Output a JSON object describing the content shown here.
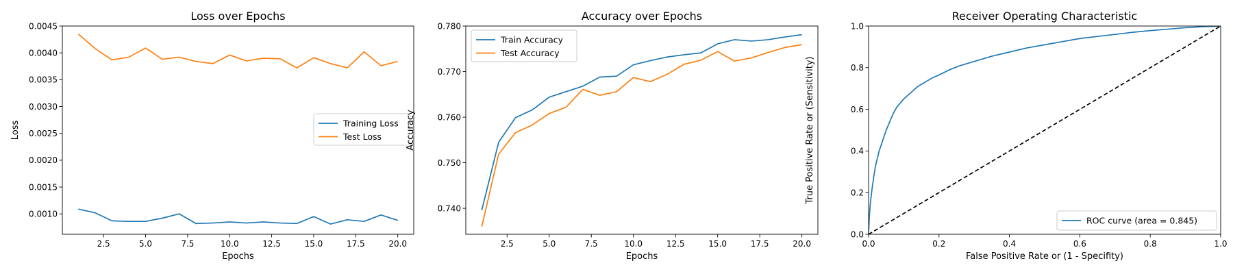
{
  "colors": {
    "blue": "#1f77b4",
    "orange": "#ff7f0e",
    "diagonal": "#000000"
  },
  "chart_data": [
    {
      "type": "line",
      "title": "Loss over Epochs",
      "xlabel": "Epochs",
      "ylabel": "Loss",
      "xlim": [
        0.05,
        20.95
      ],
      "ylim": [
        0.00062,
        0.0045
      ],
      "xticks": [
        2.5,
        5.0,
        7.5,
        10.0,
        12.5,
        15.0,
        17.5,
        20.0
      ],
      "xtick_labels": [
        "2.5",
        "5.0",
        "7.5",
        "10.0",
        "12.5",
        "15.0",
        "17.5",
        "20.0"
      ],
      "yticks": [
        0.001,
        0.0015,
        0.002,
        0.0025,
        0.003,
        0.0035,
        0.004,
        0.0045
      ],
      "ytick_labels": [
        "0.0010",
        "0.0015",
        "0.0020",
        "0.0025",
        "0.0030",
        "0.0035",
        "0.0040",
        "0.0045"
      ],
      "legend_position": "center-right",
      "x": [
        1,
        2,
        3,
        4,
        5,
        6,
        7,
        8,
        9,
        10,
        11,
        12,
        13,
        14,
        15,
        16,
        17,
        18,
        19,
        20
      ],
      "series": [
        {
          "name": "Training Loss",
          "color": "#1f77b4",
          "values": [
            0.00109,
            0.00102,
            0.00087,
            0.00086,
            0.00086,
            0.00092,
            0.001,
            0.00082,
            0.00083,
            0.00085,
            0.00083,
            0.00085,
            0.00083,
            0.00082,
            0.00095,
            0.00081,
            0.00089,
            0.00086,
            0.00098,
            0.00088
          ]
        },
        {
          "name": "Test Loss",
          "color": "#ff7f0e",
          "values": [
            0.00435,
            0.00408,
            0.00387,
            0.00392,
            0.00409,
            0.00388,
            0.00392,
            0.00384,
            0.0038,
            0.00396,
            0.00385,
            0.0039,
            0.00389,
            0.00372,
            0.00391,
            0.0038,
            0.00372,
            0.00402,
            0.00376,
            0.00384
          ]
        }
      ]
    },
    {
      "type": "line",
      "title": "Accuracy over Epochs",
      "xlabel": "Epochs",
      "ylabel": "Accuracy",
      "xlim": [
        0.05,
        20.95
      ],
      "ylim": [
        0.7343,
        0.78
      ],
      "xticks": [
        2.5,
        5.0,
        7.5,
        10.0,
        12.5,
        15.0,
        17.5,
        20.0
      ],
      "xtick_labels": [
        "2.5",
        "5.0",
        "7.5",
        "10.0",
        "12.5",
        "15.0",
        "17.5",
        "20.0"
      ],
      "yticks": [
        0.74,
        0.75,
        0.76,
        0.77,
        0.78
      ],
      "ytick_labels": [
        "0.740",
        "0.750",
        "0.760",
        "0.770",
        "0.780"
      ],
      "legend_position": "upper-left",
      "x": [
        1,
        2,
        3,
        4,
        5,
        6,
        7,
        8,
        9,
        10,
        11,
        12,
        13,
        14,
        15,
        16,
        17,
        18,
        19,
        20
      ],
      "series": [
        {
          "name": "Train Accuracy",
          "color": "#1f77b4",
          "values": [
            0.7396,
            0.7545,
            0.7599,
            0.7616,
            0.7644,
            0.7656,
            0.7668,
            0.7688,
            0.769,
            0.7715,
            0.7724,
            0.7732,
            0.7737,
            0.7741,
            0.7761,
            0.777,
            0.7767,
            0.777,
            0.7776,
            0.7781
          ]
        },
        {
          "name": "Test Accuracy",
          "color": "#ff7f0e",
          "values": [
            0.736,
            0.7519,
            0.7566,
            0.7583,
            0.7608,
            0.7622,
            0.7661,
            0.7648,
            0.7656,
            0.7687,
            0.7678,
            0.7694,
            0.7716,
            0.7725,
            0.7744,
            0.7723,
            0.773,
            0.7742,
            0.7753,
            0.7759
          ]
        }
      ]
    },
    {
      "type": "line",
      "title": "Receiver Operating Characteristic",
      "xlabel": "False Positive Rate or (1 - Specifity)",
      "ylabel": "True Positive Rate or (Sensitivity)",
      "xlim": [
        0,
        1
      ],
      "ylim": [
        0,
        1
      ],
      "xticks": [
        0,
        0.2,
        0.4,
        0.6,
        0.8,
        1.0
      ],
      "xtick_labels": [
        "0.0",
        "0.2",
        "0.4",
        "0.6",
        "0.8",
        "1.0"
      ],
      "yticks": [
        0,
        0.2,
        0.4,
        0.6,
        0.8,
        1.0
      ],
      "ytick_labels": [
        "0.0",
        "0.2",
        "0.4",
        "0.6",
        "0.8",
        "1.0"
      ],
      "legend_position": "lower-right",
      "series": [
        {
          "name": "ROC curve (area = 0.845)",
          "color": "#1f77b4",
          "x": [
            0,
            0.002,
            0.005,
            0.01,
            0.015,
            0.02,
            0.03,
            0.04,
            0.05,
            0.06,
            0.07,
            0.08,
            0.09,
            0.1,
            0.12,
            0.14,
            0.16,
            0.18,
            0.2,
            0.23,
            0.26,
            0.3,
            0.35,
            0.4,
            0.45,
            0.5,
            0.55,
            0.6,
            0.65,
            0.7,
            0.75,
            0.8,
            0.85,
            0.9,
            0.95,
            1.0
          ],
          "y": [
            0,
            0.08,
            0.15,
            0.22,
            0.28,
            0.33,
            0.4,
            0.45,
            0.5,
            0.54,
            0.58,
            0.61,
            0.63,
            0.65,
            0.68,
            0.71,
            0.73,
            0.75,
            0.765,
            0.79,
            0.81,
            0.83,
            0.855,
            0.875,
            0.895,
            0.91,
            0.925,
            0.94,
            0.95,
            0.96,
            0.97,
            0.978,
            0.985,
            0.992,
            0.997,
            1.0
          ]
        },
        {
          "name": "",
          "color": "#000000",
          "dashed": true,
          "x": [
            0,
            1
          ],
          "y": [
            0,
            1
          ]
        }
      ]
    }
  ]
}
